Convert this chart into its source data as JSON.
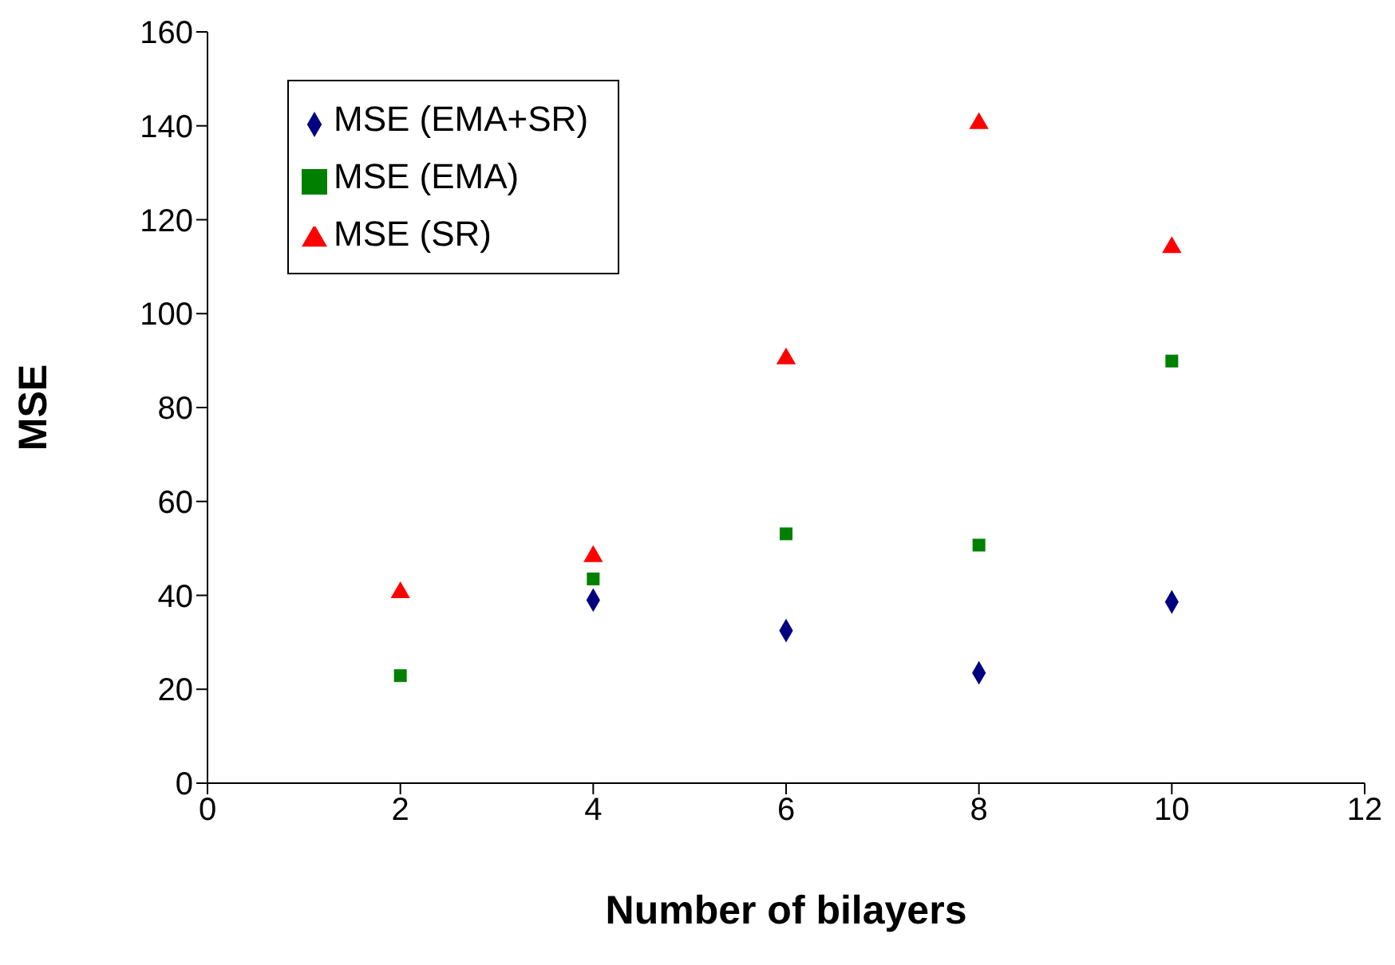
{
  "chart_data": {
    "type": "scatter",
    "xlabel": "Number of bilayers",
    "ylabel": "MSE",
    "x": [
      2,
      4,
      6,
      8,
      10
    ],
    "series": [
      {
        "name": "MSE (EMA+SR)",
        "color": "#000080",
        "marker": "diamond",
        "values": [
          null,
          39.0,
          32.5,
          23.5,
          38.6
        ]
      },
      {
        "name": "MSE (EMA)",
        "color": "#008000",
        "marker": "square",
        "values": [
          22.9,
          43.5,
          53.1,
          50.7,
          89.9
        ]
      },
      {
        "name": "MSE (SR)",
        "color": "#ff0000",
        "marker": "triangle",
        "values": [
          40.6,
          48.3,
          90.4,
          140.5,
          114.1
        ]
      }
    ],
    "xlim": [
      0,
      12
    ],
    "xticks": [
      0,
      2,
      4,
      6,
      8,
      10,
      12
    ],
    "ylim": [
      0,
      160
    ],
    "yticks": [
      0,
      20,
      40,
      60,
      80,
      100,
      120,
      140,
      160
    ],
    "grid": false,
    "legend": "top left"
  }
}
